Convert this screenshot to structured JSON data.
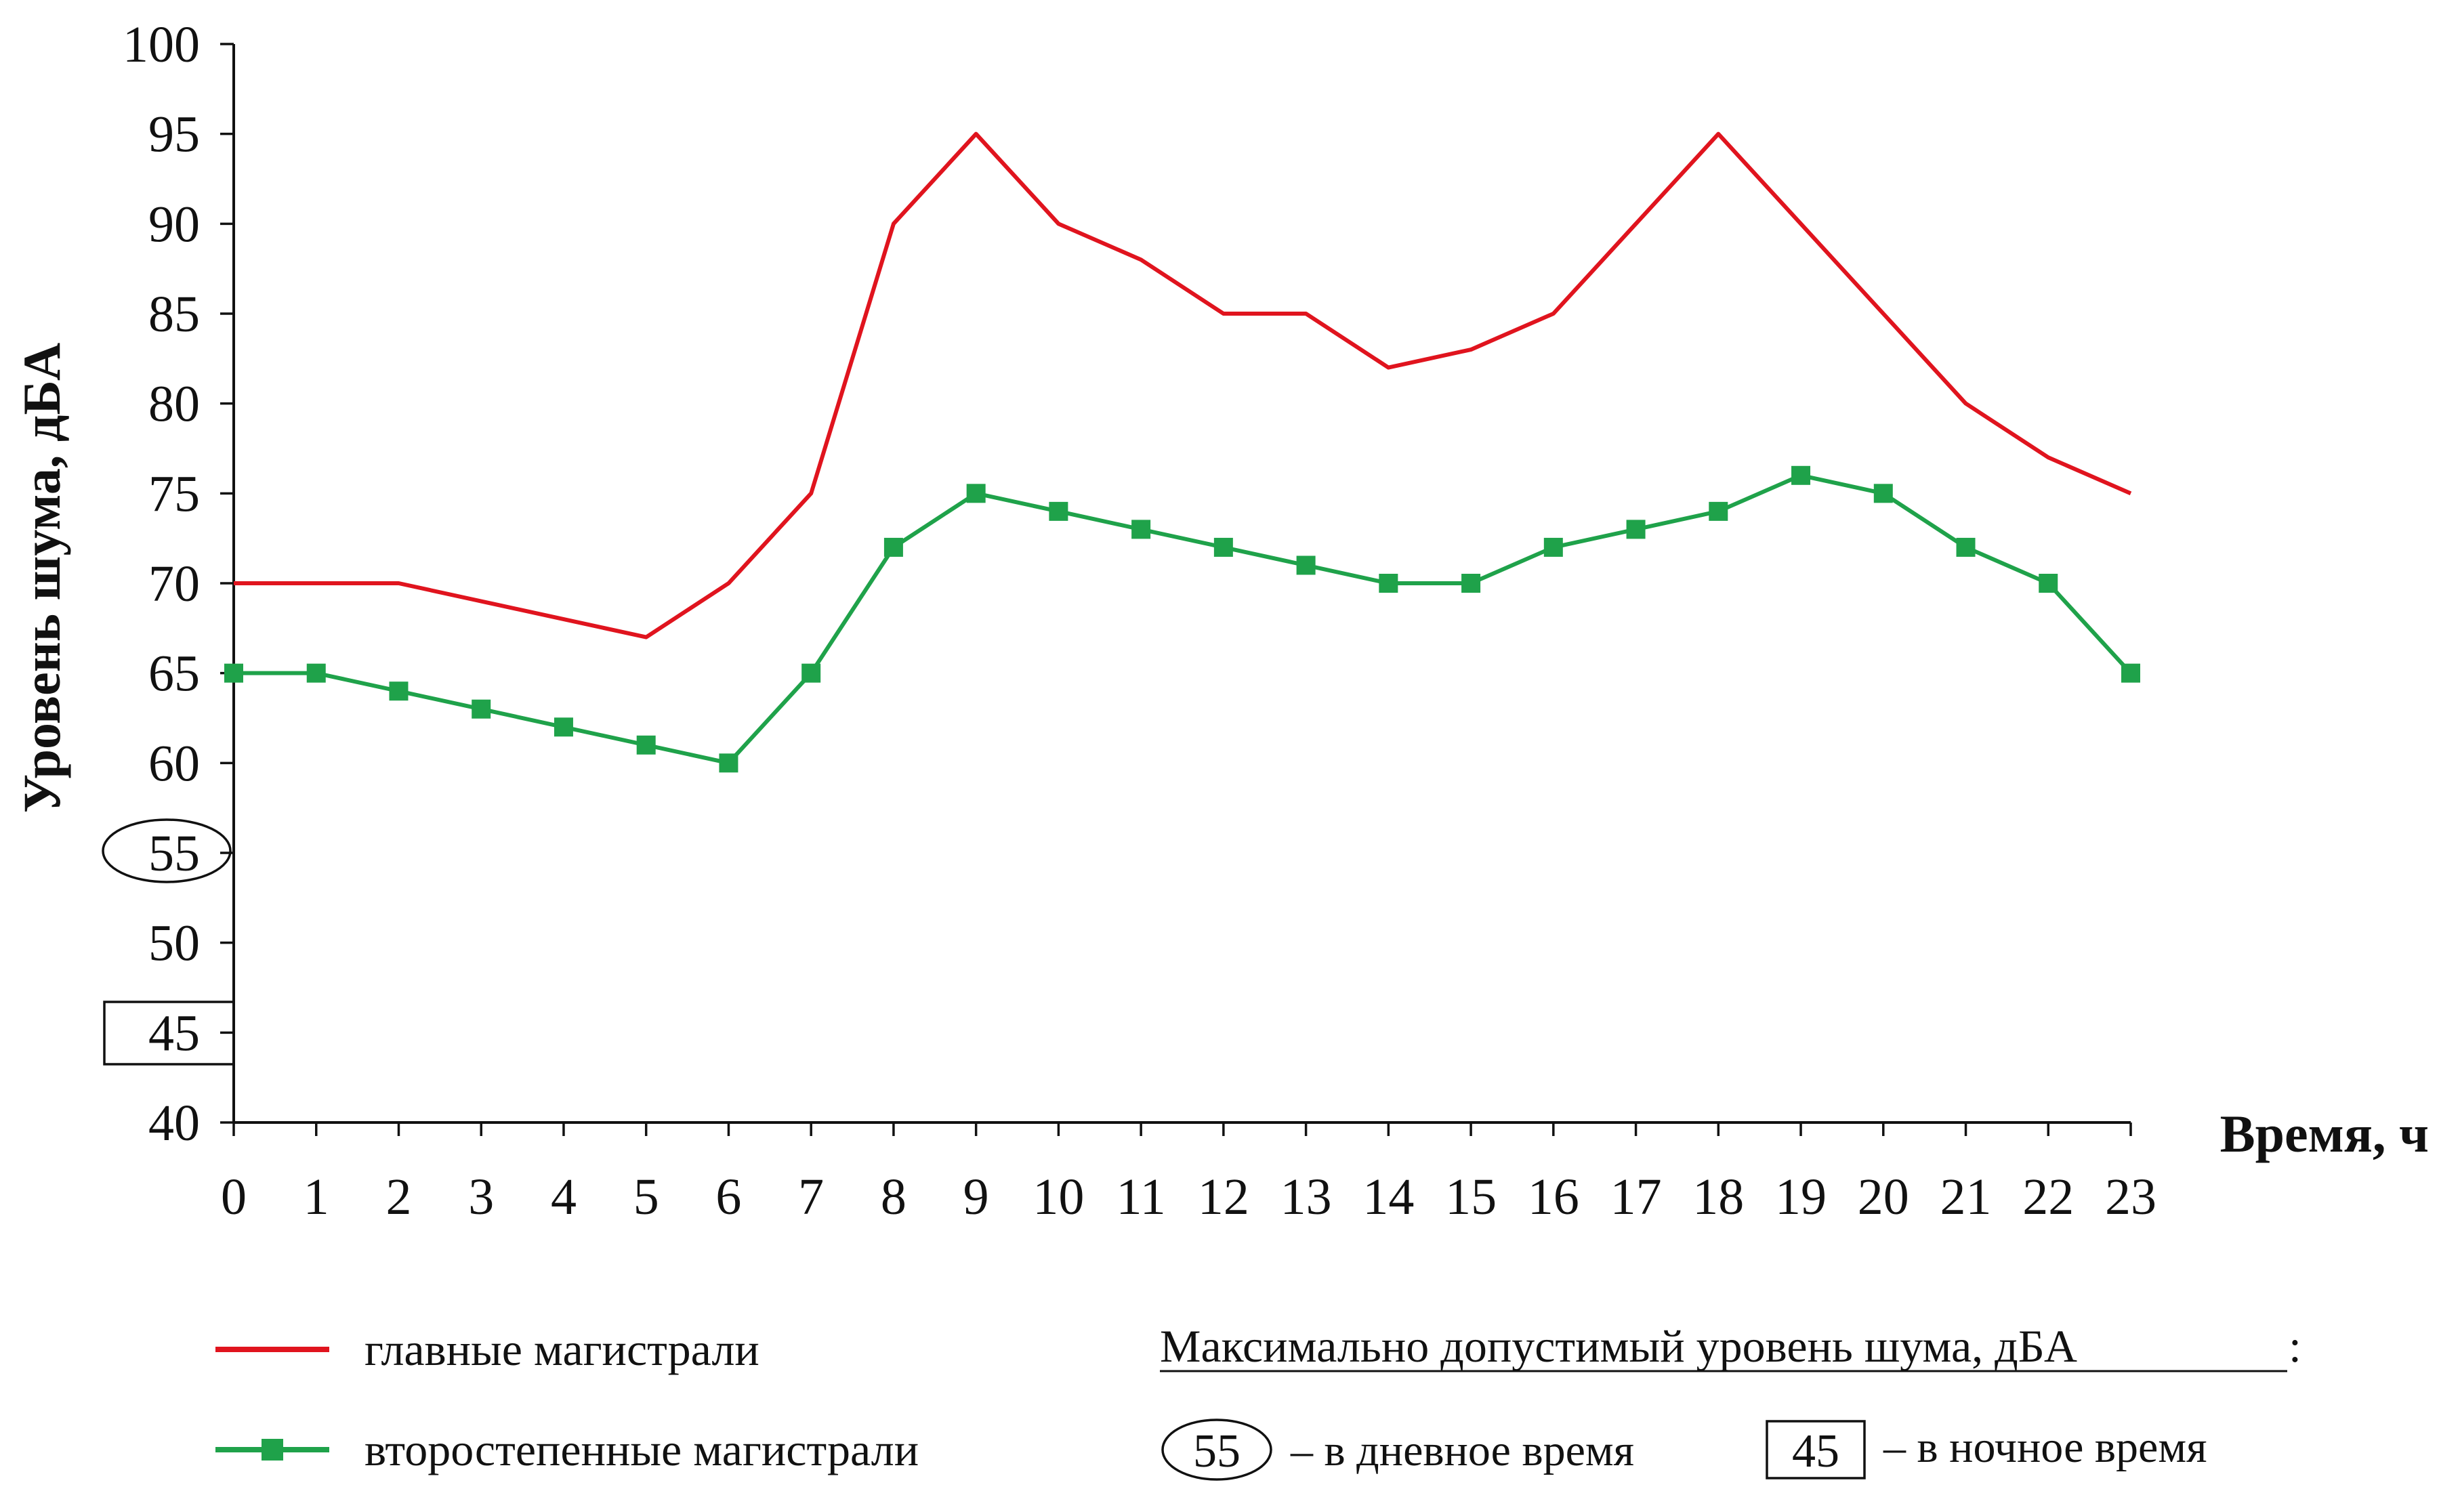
{
  "chart_data": {
    "type": "line",
    "title": "",
    "xlabel": "Время, ч",
    "ylabel": "Уровень шума, дБА",
    "x": [
      0,
      1,
      2,
      3,
      4,
      5,
      6,
      7,
      8,
      9,
      10,
      11,
      12,
      13,
      14,
      15,
      16,
      17,
      18,
      19,
      20,
      21,
      22,
      23
    ],
    "xlim": [
      0,
      23
    ],
    "ylim": [
      40,
      100
    ],
    "yticks": [
      40,
      45,
      50,
      55,
      60,
      65,
      70,
      75,
      80,
      85,
      90,
      95,
      100
    ],
    "grid": false,
    "legend_position": "bottom",
    "series": [
      {
        "name": "главные магистрали",
        "color": "#e0141e",
        "marker": "none",
        "values": [
          70,
          70,
          70,
          69,
          68,
          67,
          70,
          75,
          90,
          95,
          90,
          88,
          85,
          85,
          82,
          83,
          85,
          90,
          95,
          90,
          85,
          80,
          77,
          75
        ]
      },
      {
        "name": "второстепенные магистрали",
        "color": "#1fa24a",
        "marker": "square",
        "values": [
          65,
          65,
          64,
          63,
          62,
          61,
          60,
          65,
          72,
          75,
          74,
          73,
          72,
          71,
          70,
          70,
          72,
          73,
          74,
          76,
          75,
          72,
          70,
          65
        ]
      }
    ],
    "limits": {
      "title": "Максимально допустимый уровень шума, дБА",
      "day": {
        "value": 55,
        "shape": "ellipse",
        "label": "– в дневное время"
      },
      "night": {
        "value": 45,
        "shape": "rectangle",
        "label": "– в ночное время"
      }
    }
  }
}
